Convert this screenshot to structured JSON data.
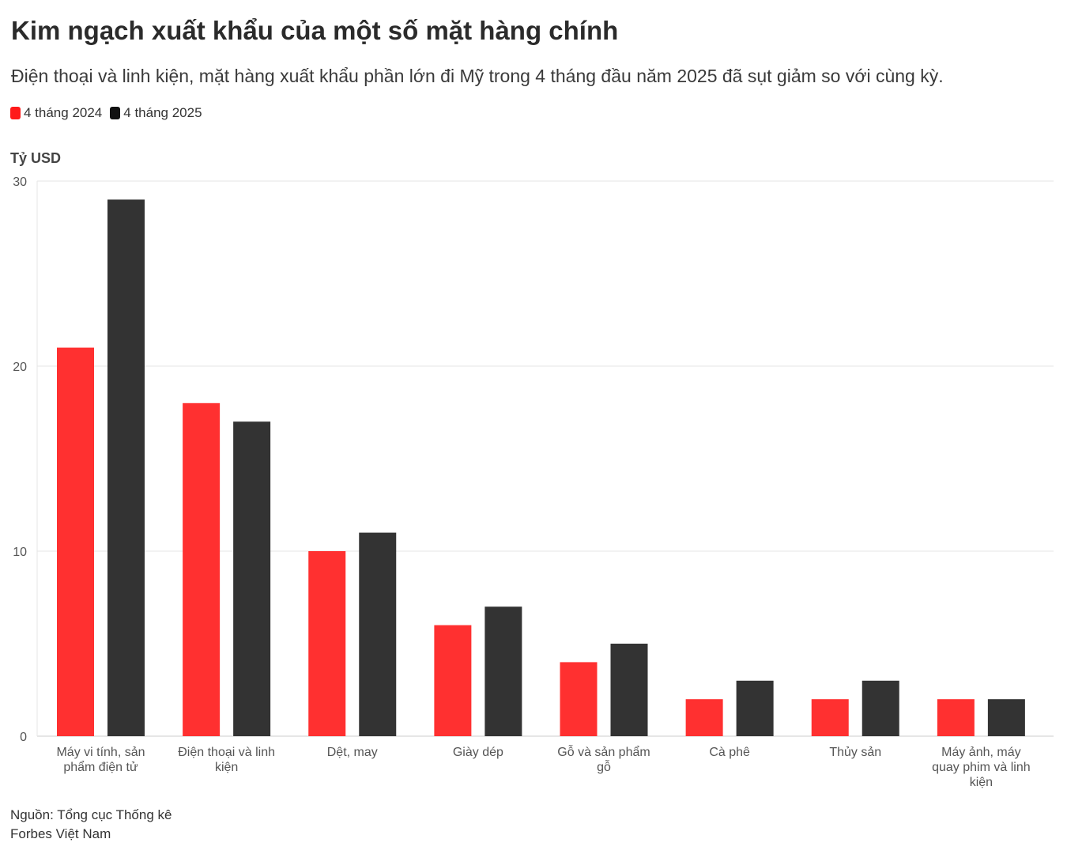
{
  "title": "Kim ngạch xuất khẩu của một số mặt hàng chính",
  "subtitle": "Điện thoại và linh kiện, mặt hàng xuất khẩu phần lớn đi Mỹ trong 4 tháng đầu năm 2025 đã sụt giảm so với cùng kỳ.",
  "source": "Nguồn: Tổng cục Thống kê",
  "credit": "Forbes Việt Nam",
  "chart_data": {
    "type": "bar",
    "ylabel": "Tỷ USD",
    "ylim": [
      0,
      30
    ],
    "yticks": [
      "0",
      "10",
      "20",
      "30"
    ],
    "grid": true,
    "legend_position": "top-left",
    "categories": [
      "Máy vi tính, sản phẩm điện tử",
      "Điện thoại và linh kiện",
      "Dệt, may",
      "Giày dép",
      "Gỗ và sản phẩm gỗ",
      "Cà phê",
      "Thủy sản",
      "Máy ảnh, máy quay phim và linh kiện"
    ],
    "category_lines": [
      [
        "Máy vi tính, sản",
        "phẩm điện tử"
      ],
      [
        "Điện thoại và linh",
        "kiện"
      ],
      [
        "Dệt, may"
      ],
      [
        "Giày dép"
      ],
      [
        "Gỗ và sản phẩm",
        "gỗ"
      ],
      [
        "Cà phê"
      ],
      [
        "Thủy sản"
      ],
      [
        "Máy ảnh, máy",
        "quay phim và linh",
        "kiện"
      ]
    ],
    "series": [
      {
        "name": "4 tháng 2024",
        "color": "#ff3030",
        "values": [
          21,
          18,
          10,
          6,
          4,
          2,
          2,
          2
        ]
      },
      {
        "name": "4 tháng 2025",
        "color": "#333333",
        "values": [
          29,
          17,
          11,
          7,
          5,
          3,
          3,
          2
        ]
      }
    ]
  }
}
